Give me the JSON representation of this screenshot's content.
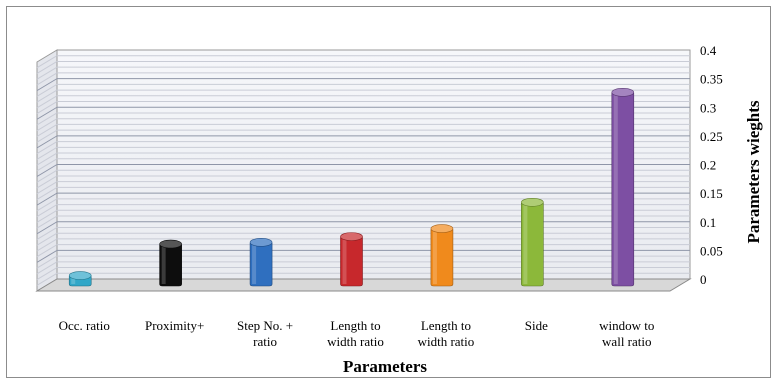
{
  "chart_data": {
    "type": "bar",
    "title": "",
    "xlabel": "Parameters",
    "ylabel": "Parameters wieghts",
    "ylim": [
      0,
      0.4
    ],
    "yticks": [
      "0",
      "0.05",
      "0.1",
      "0.15",
      "0.2",
      "0.25",
      "0.3",
      "0.35",
      "0.4"
    ],
    "y_axis_side": "right",
    "grid": true,
    "legend": "none",
    "categories": [
      [
        "Occ. ratio"
      ],
      [
        "Proximity+"
      ],
      [
        "Step No. +",
        "ratio"
      ],
      [
        "Length to",
        "width ratio"
      ],
      [
        "Length to",
        "width ratio"
      ],
      [
        "Side"
      ],
      [
        "window to",
        "wall ratio"
      ]
    ],
    "values": [
      0.02,
      0.075,
      0.078,
      0.088,
      0.102,
      0.148,
      0.34
    ],
    "colors": [
      "#31a7c8",
      "#0d0d0d",
      "#2f6fbf",
      "#c7282c",
      "#f08a1c",
      "#8cb83a",
      "#7d4fa3"
    ]
  }
}
